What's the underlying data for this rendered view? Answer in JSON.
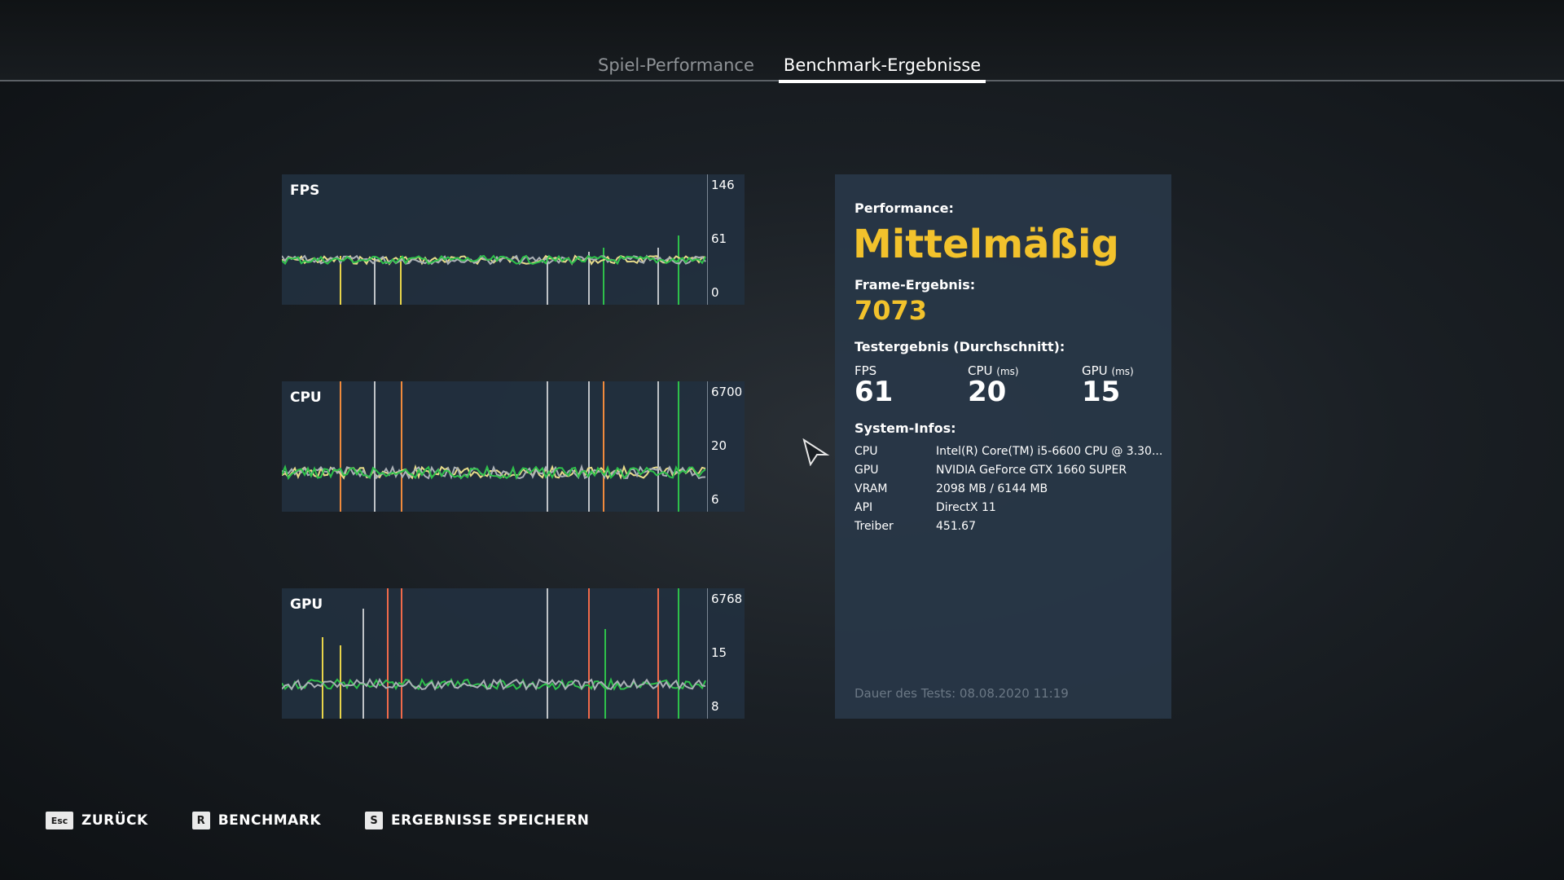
{
  "tabs": [
    {
      "label": "Spiel-Performance",
      "active": false
    },
    {
      "label": "Benchmark-Ergebnisse",
      "active": true
    }
  ],
  "charts": [
    {
      "title": "FPS",
      "ticks": [
        "146",
        "61",
        "0"
      ],
      "line_colors": [
        "#e8dc8a",
        "#aab0b6",
        "#2ec04a"
      ],
      "spike_colors": [
        "#e8d44a",
        "#bfc3c7",
        "#2ec04a"
      ]
    },
    {
      "title": "CPU",
      "ticks": [
        "6700",
        "20",
        "6"
      ],
      "line_colors": [
        "#e8dc8a",
        "#aab0b6",
        "#2ec04a"
      ],
      "spike_colors": [
        "#f08a3c",
        "#bfc3c7",
        "#2ec04a"
      ]
    },
    {
      "title": "GPU",
      "ticks": [
        "6768",
        "15",
        "8"
      ],
      "line_colors": [
        "#2ec04a",
        "#aab0b6"
      ],
      "spike_colors": [
        "#e8d44a",
        "#bfc3c7",
        "#f06a4a",
        "#2ec04a"
      ]
    }
  ],
  "performance": {
    "label": "Performance:",
    "rating": "Mittelmäßig",
    "frame_label": "Frame-Ergebnis:",
    "frame_value": "7073",
    "avg_label": "Testergebnis (Durchschnitt):",
    "stats": [
      {
        "name": "FPS",
        "unit": "",
        "value": "61"
      },
      {
        "name": "CPU",
        "unit": "(ms)",
        "value": "20"
      },
      {
        "name": "GPU",
        "unit": "(ms)",
        "value": "15"
      }
    ],
    "accent_color": "#f2c22c"
  },
  "system": {
    "label": "System-Infos:",
    "rows": [
      {
        "key": "CPU",
        "value": "Intel(R) Core(TM) i5-6600 CPU @ 3.30..."
      },
      {
        "key": "GPU",
        "value": "NVIDIA GeForce GTX 1660 SUPER"
      },
      {
        "key": "VRAM",
        "value": "2098 MB / 6144 MB"
      },
      {
        "key": "API",
        "value": "DirectX 11"
      },
      {
        "key": "Treiber",
        "value": "451.67"
      }
    ]
  },
  "footer_note": "Dauer des Tests: 08.08.2020 11:19",
  "bottom_buttons": [
    {
      "key": "Esc",
      "label": "ZURÜCK"
    },
    {
      "key": "R",
      "label": "BENCHMARK"
    },
    {
      "key": "S",
      "label": "ERGEBNISSE SPEICHERN"
    }
  ]
}
